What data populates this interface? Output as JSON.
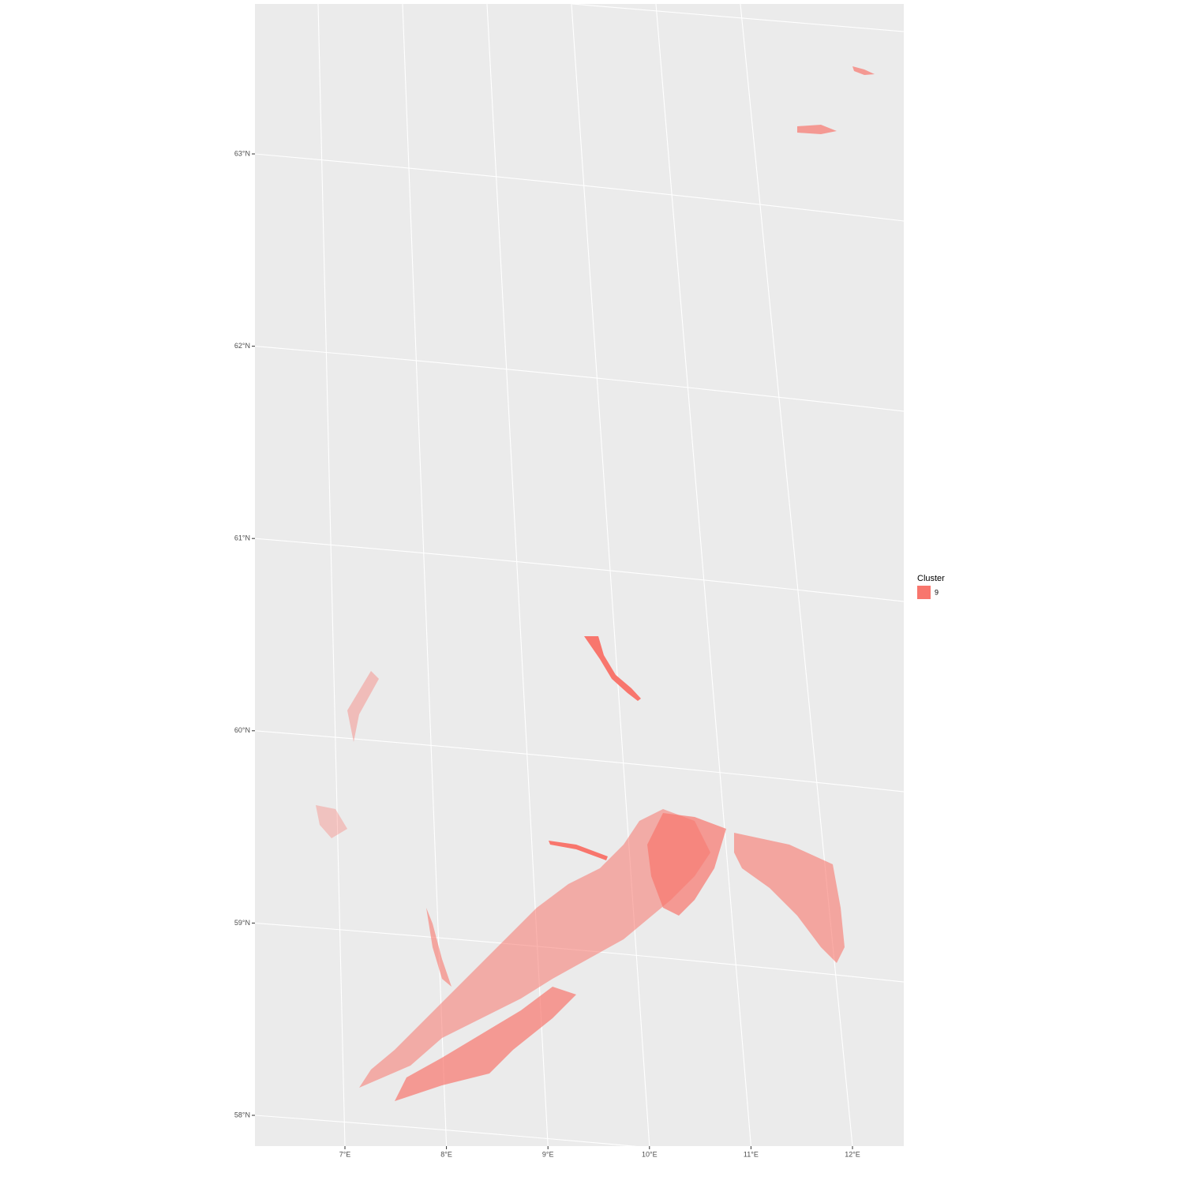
{
  "map": {
    "x_ticks": [
      {
        "value": 7,
        "label": "7°E"
      },
      {
        "value": 8,
        "label": "8°E"
      },
      {
        "value": 9,
        "label": "9°E"
      },
      {
        "value": 10,
        "label": "10°E"
      },
      {
        "value": 11,
        "label": "11°E"
      },
      {
        "value": 12,
        "label": "12°E"
      }
    ],
    "y_ticks": [
      {
        "value": 58,
        "label": "58°N"
      },
      {
        "value": 59,
        "label": "59°N"
      },
      {
        "value": 60,
        "label": "60°N"
      },
      {
        "value": 61,
        "label": "61°N"
      },
      {
        "value": 62,
        "label": "62°N"
      },
      {
        "value": 63,
        "label": "63°N"
      }
    ],
    "legend": {
      "title": "Cluster",
      "entries": [
        {
          "label": "9",
          "color": "#F8766D"
        }
      ]
    }
  }
}
